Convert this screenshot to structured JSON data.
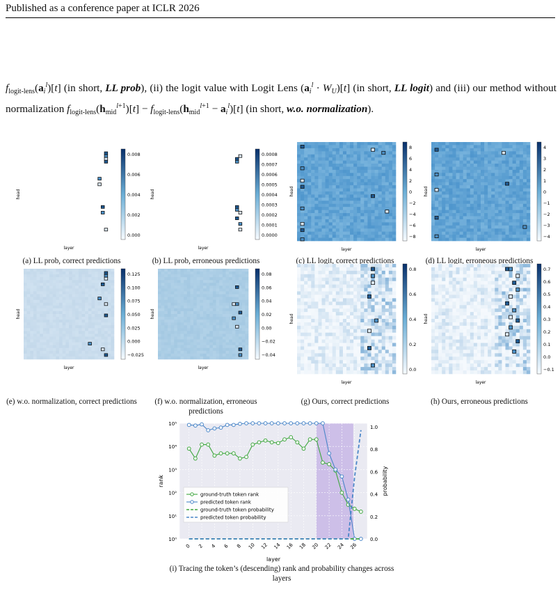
{
  "header": {
    "text": "Published as a conference paper at ICLR 2026"
  },
  "paragraph": {
    "p1": "(in short, ",
    "ll_prob": "LL prob",
    "p2": "), (ii) the logit value with Logit Lens ",
    "p3": " (in short, ",
    "ll_logit": "LL logit",
    "p4": ") and (iii) our method without normalization ",
    "p5": " (in short, ",
    "wo_norm": "w.o. normalization",
    "p6": ")."
  },
  "heatmaps": [
    {
      "id": "a",
      "caption": "(a) LL prob, correct predictions",
      "ticks": [
        "0.008",
        "0.006",
        "0.004",
        "0.002",
        "0.000"
      ]
    },
    {
      "id": "b",
      "caption": "(b) LL prob, erroneous predictions",
      "ticks": [
        "0.0008",
        "0.0007",
        "0.0006",
        "0.0005",
        "0.0004",
        "0.0003",
        "0.0002",
        "0.0001",
        "0.0000"
      ]
    },
    {
      "id": "c",
      "caption": "(c) LL logit, correct predictions",
      "ticks": [
        "8",
        "6",
        "4",
        "2",
        "0",
        "−2",
        "−4",
        "−6",
        "−8"
      ]
    },
    {
      "id": "d",
      "caption": "(d) LL logit, erroneous predictions",
      "ticks": [
        "4",
        "3",
        "2",
        "1",
        "0",
        "−1",
        "−2",
        "−3",
        "−4"
      ]
    },
    {
      "id": "e",
      "caption": "(e) w.o. normalization, correct predictions",
      "ticks": [
        "0.125",
        "0.100",
        "0.075",
        "0.050",
        "0.025",
        "0.000",
        "−0.025"
      ]
    },
    {
      "id": "f",
      "caption": "(f) w.o. normalization, erroneous predictions",
      "ticks": [
        "0.08",
        "0.06",
        "0.04",
        "0.02",
        "0.00",
        "−0.02",
        "−0.04"
      ]
    },
    {
      "id": "g",
      "caption": "(g) Ours, correct predictions",
      "ticks": [
        "0.8",
        "0.6",
        "0.4",
        "0.2",
        "0.0"
      ]
    },
    {
      "id": "h",
      "caption": "(h) Ours, erroneous predictions",
      "ticks": [
        "0.7",
        "0.6",
        "0.5",
        "0.4",
        "0.3",
        "0.2",
        "0.1",
        "0.0",
        "−0.1"
      ]
    }
  ],
  "heatmap_labels": {
    "x": "layer",
    "y": "head"
  },
  "chart_data": {
    "type": "line",
    "caption": "(i) Tracing the token’s (descending) rank and probability changes across layers",
    "xlabel": "layer",
    "ylabel": "rank",
    "y2label": "probability",
    "x": [
      0,
      1,
      2,
      3,
      4,
      5,
      6,
      7,
      8,
      9,
      10,
      11,
      12,
      13,
      14,
      15,
      16,
      17,
      18,
      19,
      20,
      21,
      22,
      23,
      24,
      25,
      26,
      27
    ],
    "x_ticks": [
      "0",
      "2",
      "4",
      "6",
      "8",
      "10",
      "12",
      "14",
      "16",
      "18",
      "20",
      "22",
      "24",
      "26"
    ],
    "y_ticks": [
      "10⁵",
      "10⁴",
      "10³",
      "10²",
      "10¹",
      "10⁰"
    ],
    "y2_ticks": [
      "1.0",
      "0.8",
      "0.6",
      "0.4",
      "0.2",
      "0.0"
    ],
    "yscale": "log",
    "ylim": [
      1,
      100000
    ],
    "y2lim": [
      0,
      1
    ],
    "highlight_layers": [
      20,
      25.8
    ],
    "series": [
      {
        "name": "ground-truth token rank",
        "color": "#3fa63f",
        "values": [
          8000,
          3000,
          12000,
          12000,
          4000,
          5000,
          5000,
          5000,
          3000,
          3500,
          12000,
          15000,
          18000,
          15000,
          14000,
          20000,
          25000,
          15000,
          8000,
          20000,
          20000,
          2000,
          1700,
          900,
          100,
          30,
          20,
          15
        ]
      },
      {
        "name": "predicted token rank",
        "color": "#4a86c8",
        "values": [
          85000,
          80000,
          90000,
          50000,
          60000,
          65000,
          85000,
          85000,
          95000,
          100000,
          100000,
          100000,
          100000,
          100000,
          100000,
          100000,
          100000,
          100000,
          100000,
          100000,
          100000,
          100000,
          5000,
          1000,
          500,
          50,
          1,
          1
        ]
      },
      {
        "name": "ground-truth token probability",
        "color": "#3fa63f",
        "dashed": true,
        "values": [
          0,
          0,
          0,
          0,
          0,
          0,
          0,
          0,
          0,
          0,
          0,
          0,
          0,
          0,
          0,
          0,
          0,
          0,
          0,
          0,
          0,
          0,
          0,
          0,
          0,
          0,
          0,
          0
        ]
      },
      {
        "name": "predicted token probability",
        "color": "#4a86c8",
        "dashed": true,
        "values": [
          0,
          0,
          0,
          0,
          0,
          0,
          0,
          0,
          0,
          0,
          0,
          0,
          0,
          0,
          0,
          0,
          0,
          0,
          0,
          0,
          0,
          0,
          0,
          0,
          0,
          0,
          0.55,
          0.97
        ]
      }
    ]
  }
}
